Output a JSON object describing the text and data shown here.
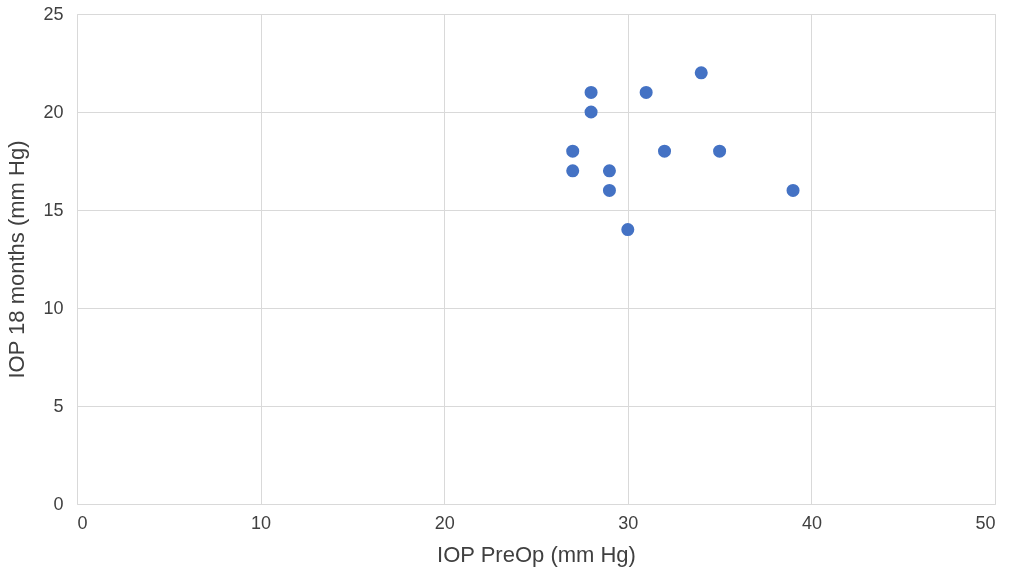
{
  "chart_data": {
    "type": "scatter",
    "xlabel": "IOP PreOp (mm Hg)",
    "ylabel": "IOP 18 months (mm Hg)",
    "x": [
      27,
      27,
      28,
      28,
      29,
      29,
      30,
      31,
      32,
      34,
      35,
      39
    ],
    "series": [
      {
        "color": "#4472c4",
        "values": [
          17,
          18,
          21,
          20,
          17,
          16,
          14,
          21,
          18,
          22,
          18,
          16
        ]
      }
    ],
    "xlim": [
      0,
      50
    ],
    "xticks": [
      0,
      10,
      20,
      30,
      40,
      50
    ],
    "ylim": [
      0,
      25
    ],
    "yticks": [
      0,
      5,
      10,
      15,
      20,
      25
    ],
    "grid": true,
    "marker": "circle",
    "legend": false
  }
}
